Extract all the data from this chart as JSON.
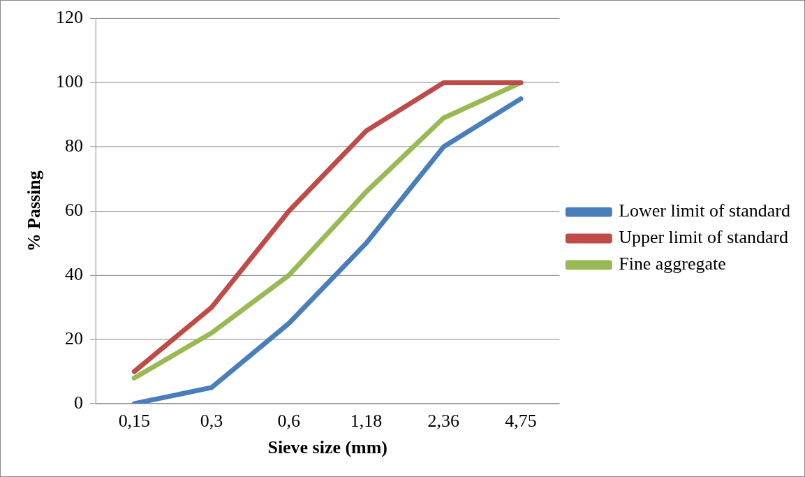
{
  "chart_data": {
    "type": "line",
    "xlabel": "Sieve size (mm)",
    "ylabel": "% Passing",
    "categories": [
      "0,15",
      "0,3",
      "0,6",
      "1,18",
      "2,36",
      "4,75"
    ],
    "series": [
      {
        "name": "Lower limit of standard",
        "color": "#4a7ebb",
        "values": [
          0,
          5,
          25,
          50,
          80,
          95
        ]
      },
      {
        "name": "Upper limit of standard",
        "color": "#be4b48",
        "values": [
          10,
          30,
          60,
          85,
          100,
          100
        ]
      },
      {
        "name": "Fine aggregate",
        "color": "#98b954",
        "values": [
          8,
          22,
          40,
          66,
          89,
          100
        ]
      }
    ],
    "ylim": [
      0,
      120
    ],
    "yticks": [
      0,
      20,
      40,
      60,
      80,
      100,
      120
    ],
    "grid": "y",
    "legend": "right",
    "marker": "none",
    "line_style": "solid"
  }
}
